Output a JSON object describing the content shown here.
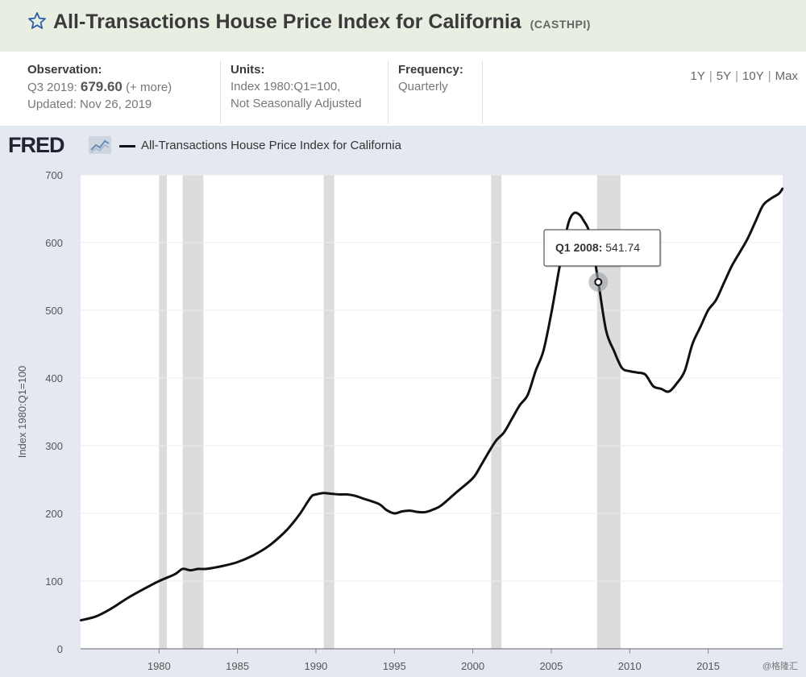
{
  "header": {
    "title": "All-Transactions House Price Index for California",
    "series_id": "(CASTHPI)",
    "star_icon": "star-outline-icon"
  },
  "info": {
    "observation": {
      "label": "Observation:",
      "period": "Q3 2019:",
      "value": "679.60",
      "more": "(+ more)",
      "updated": "Updated: Nov 26, 2019"
    },
    "units": {
      "label": "Units:",
      "line1": "Index 1980:Q1=100,",
      "line2": "Not Seasonally Adjusted"
    },
    "frequency": {
      "label": "Frequency:",
      "value": "Quarterly"
    },
    "ranges": [
      "1Y",
      "5Y",
      "10Y",
      "Max"
    ]
  },
  "legend": {
    "brand": "FRED",
    "series": "All-Transactions House Price Index for California"
  },
  "watermark": "@格隆汇",
  "chart_data": {
    "type": "line",
    "title": "All-Transactions House Price Index for California",
    "xlabel": "",
    "ylabel": "Index 1980:Q1=100",
    "xlim": [
      1975.0,
      2019.75
    ],
    "ylim": [
      0,
      700
    ],
    "yticks": [
      0,
      100,
      200,
      300,
      400,
      500,
      600,
      700
    ],
    "xticks": [
      1980,
      1985,
      1990,
      1995,
      2000,
      2005,
      2010,
      2015
    ],
    "grid": "horizontal",
    "line_color": "#111111",
    "recession_color": "#dcdcdc",
    "recessions": [
      [
        1980.0,
        1980.5
      ],
      [
        1981.5,
        1982.83
      ],
      [
        1990.5,
        1991.17
      ],
      [
        2001.17,
        2001.83
      ],
      [
        2007.92,
        2009.42
      ]
    ],
    "series": [
      {
        "name": "All-Transactions House Price Index for California",
        "x": [
          1975.0,
          1976.0,
          1977.0,
          1978.0,
          1979.0,
          1980.0,
          1981.0,
          1981.5,
          1982.0,
          1982.5,
          1983.0,
          1984.0,
          1985.0,
          1986.0,
          1987.0,
          1988.0,
          1988.5,
          1989.0,
          1989.5,
          1989.75,
          1990.0,
          1990.5,
          1991.0,
          1991.5,
          1992.0,
          1992.5,
          1993.0,
          1994.0,
          1994.5,
          1995.0,
          1995.5,
          1996.0,
          1996.5,
          1997.0,
          1997.5,
          1998.0,
          1999.0,
          2000.0,
          2000.5,
          2001.0,
          2001.5,
          2002.0,
          2002.5,
          2003.0,
          2003.5,
          2004.0,
          2004.5,
          2005.0,
          2005.5,
          2006.0,
          2006.25,
          2006.5,
          2006.75,
          2007.0,
          2007.5,
          2008.0,
          2008.5,
          2009.0,
          2009.5,
          2010.0,
          2010.5,
          2011.0,
          2011.5,
          2012.0,
          2012.5,
          2013.0,
          2013.5,
          2014.0,
          2014.5,
          2015.0,
          2015.5,
          2016.0,
          2016.5,
          2017.0,
          2017.5,
          2018.0,
          2018.5,
          2019.0,
          2019.5,
          2019.75
        ],
        "values": [
          42,
          48,
          60,
          75,
          88,
          100,
          110,
          118,
          116,
          118,
          118,
          122,
          128,
          138,
          152,
          172,
          185,
          200,
          218,
          226,
          228,
          230,
          229,
          228,
          228,
          226,
          222,
          214,
          205,
          200,
          203,
          204,
          202,
          202,
          206,
          212,
          232,
          252,
          270,
          290,
          308,
          320,
          340,
          360,
          375,
          410,
          440,
          495,
          560,
          620,
          638,
          644,
          642,
          635,
          610,
          541.74,
          470,
          440,
          415,
          410,
          408,
          405,
          388,
          384,
          380,
          392,
          410,
          450,
          475,
          500,
          515,
          540,
          565,
          585,
          605,
          630,
          655,
          665,
          672,
          680
        ]
      }
    ],
    "tooltip": {
      "x": 2008.0,
      "y": 541.74,
      "label": "Q1 2008:",
      "value": "541.74"
    }
  }
}
